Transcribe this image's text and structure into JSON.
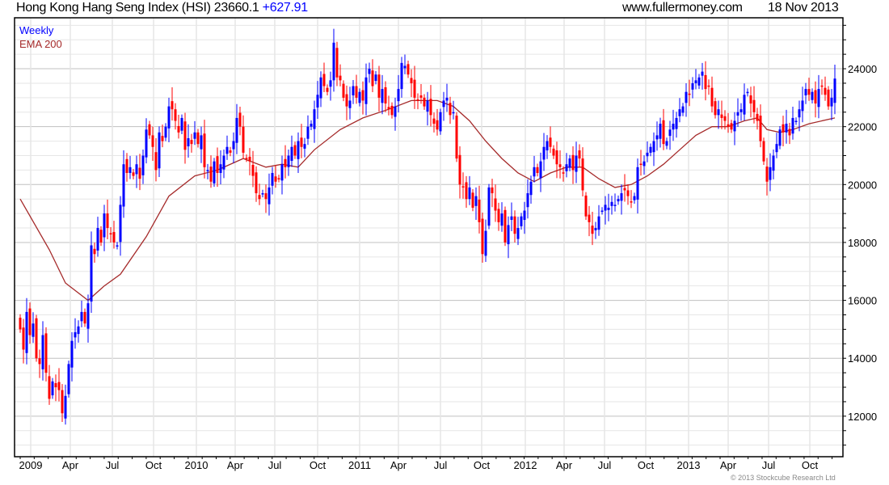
{
  "header": {
    "title": "Hong Kong Hang Seng Index (HSI) 23660.1",
    "change": "+627.91",
    "site": "www.fullermoney.com",
    "date": "18 Nov 2013"
  },
  "legend": {
    "weekly": "Weekly",
    "ema": "EMA 200"
  },
  "copyright": "© 2013 Stockcube Research Ltd",
  "colors": {
    "up": "#0000ff",
    "down": "#ff0000",
    "ema": "#a52a2a",
    "grid_major": "#c0c0c0",
    "grid_minor": "#e6e6e6"
  },
  "chart_data": {
    "type": "candlestick",
    "title": "Hong Kong Hang Seng Index (HSI)",
    "frequency": "Weekly",
    "ylim": [
      10600,
      25760
    ],
    "y_ticks": [
      12000,
      14000,
      16000,
      18000,
      20000,
      22000,
      24000
    ],
    "x_ticks": [
      {
        "label": "2009",
        "week": 3.25
      },
      {
        "label": "Apr",
        "week": 15.5
      },
      {
        "label": "Jul",
        "week": 28.5
      },
      {
        "label": "Oct",
        "week": 41.25
      },
      {
        "label": "2010",
        "week": 54.5
      },
      {
        "label": "Apr",
        "week": 66.5
      },
      {
        "label": "Jul",
        "week": 78.75
      },
      {
        "label": "Oct",
        "week": 92
      },
      {
        "label": "2011",
        "week": 105
      },
      {
        "label": "Apr",
        "week": 117
      },
      {
        "label": "Jul",
        "week": 130
      },
      {
        "label": "Oct",
        "week": 142.75
      },
      {
        "label": "2012",
        "week": 156.25
      },
      {
        "label": "Apr",
        "week": 168.25
      },
      {
        "label": "Jul",
        "week": 180.75
      },
      {
        "label": "Oct",
        "week": 193.5
      },
      {
        "label": "2013",
        "week": 206.75
      },
      {
        "label": "Apr",
        "week": 219
      },
      {
        "label": "Jul",
        "week": 231.5
      },
      {
        "label": "Oct",
        "week": 244.25
      }
    ],
    "close": [
      15000,
      14300,
      15600,
      14800,
      15200,
      14000,
      13800,
      14800,
      13500,
      12600,
      13200,
      13000,
      12900,
      12100,
      12700,
      13800,
      14600,
      14900,
      15100,
      15600,
      15200,
      15900,
      17900,
      17600,
      18500,
      18000,
      19000,
      18500,
      18300,
      18000,
      17900,
      19300,
      20700,
      20400,
      20600,
      20300,
      20700,
      20200,
      21000,
      21900,
      21700,
      21300,
      20500,
      21800,
      21500,
      22000,
      22700,
      22600,
      22200,
      21800,
      22300,
      21200,
      21600,
      21400,
      21800,
      21400,
      21700,
      20600,
      20500,
      20100,
      20800,
      20400,
      20700,
      21000,
      21300,
      21100,
      21500,
      22300,
      22000,
      21100,
      20900,
      20800,
      20300,
      19700,
      19500,
      19700,
      19500,
      19900,
      20400,
      20100,
      20200,
      20700,
      20600,
      21000,
      21300,
      21000,
      21500,
      21300,
      21400,
      22000,
      22100,
      22600,
      23100,
      23700,
      23400,
      23200,
      23600,
      24900,
      23700,
      23600,
      23000,
      22700,
      22900,
      23400,
      23000,
      23200,
      22900,
      23700,
      24000,
      23400,
      23800,
      23000,
      23300,
      22800,
      22600,
      22400,
      22700,
      23300,
      24200,
      24100,
      23800,
      23500,
      23000,
      22900,
      23000,
      22700,
      22900,
      22400,
      22100,
      21900,
      22500,
      22900,
      23000,
      22400,
      22500,
      20900,
      20000,
      19900,
      19500,
      19900,
      19200,
      19600,
      18700,
      17600,
      18400,
      19900,
      19700,
      19100,
      18700,
      19000,
      18000,
      18600,
      18900,
      18300,
      18500,
      18900,
      19100,
      19700,
      20100,
      20600,
      20400,
      20800,
      21300,
      21500,
      21300,
      21000,
      20700,
      20600,
      20400,
      20700,
      20900,
      20500,
      21000,
      20900,
      19800,
      18900,
      18700,
      18300,
      18500,
      18900,
      19100,
      19300,
      19200,
      19400,
      19300,
      19500,
      19700,
      19800,
      19600,
      19400,
      19600,
      20600,
      20700,
      20800,
      21100,
      21300,
      21500,
      21700,
      22100,
      21400,
      21500,
      21900,
      22100,
      22300,
      22600,
      22700,
      23200,
      23100,
      23500,
      23600,
      23700,
      23900,
      23300,
      23400,
      22700,
      22400,
      22600,
      22300,
      22200,
      22000,
      21900,
      22200,
      22500,
      22600,
      23100,
      23200,
      22800,
      22500,
      22200,
      21500,
      20800,
      20100,
      20600,
      21000,
      21400,
      21900,
      21800,
      22100,
      21700,
      22300,
      22200,
      22600,
      22900,
      23300,
      23100,
      23200,
      22800,
      23300,
      23400,
      23100,
      22700,
      23000,
      23660
    ],
    "ema200": [
      [
        0,
        19500
      ],
      [
        9,
        17750
      ],
      [
        14,
        16600
      ],
      [
        21,
        16000
      ],
      [
        26,
        16500
      ],
      [
        31,
        16900
      ],
      [
        39,
        18200
      ],
      [
        46,
        19600
      ],
      [
        54,
        20300
      ],
      [
        61,
        20500
      ],
      [
        69,
        20900
      ],
      [
        76,
        20600
      ],
      [
        81,
        20700
      ],
      [
        86,
        20600
      ],
      [
        91,
        21200
      ],
      [
        99,
        21900
      ],
      [
        106,
        22300
      ],
      [
        114,
        22600
      ],
      [
        121,
        22900
      ],
      [
        129,
        22900
      ],
      [
        134,
        22700
      ],
      [
        139,
        22200
      ],
      [
        144,
        21500
      ],
      [
        149,
        20900
      ],
      [
        154,
        20400
      ],
      [
        159,
        20100
      ],
      [
        164,
        20400
      ],
      [
        169,
        20600
      ],
      [
        174,
        20600
      ],
      [
        179,
        20200
      ],
      [
        184,
        19900
      ],
      [
        189,
        20000
      ],
      [
        194,
        20300
      ],
      [
        199,
        20700
      ],
      [
        204,
        21200
      ],
      [
        209,
        21700
      ],
      [
        214,
        22000
      ],
      [
        219,
        22000
      ],
      [
        224,
        22200
      ],
      [
        228,
        22300
      ],
      [
        231,
        21900
      ],
      [
        235,
        21800
      ],
      [
        239,
        21900
      ],
      [
        244,
        22100
      ],
      [
        252,
        22300
      ]
    ]
  }
}
